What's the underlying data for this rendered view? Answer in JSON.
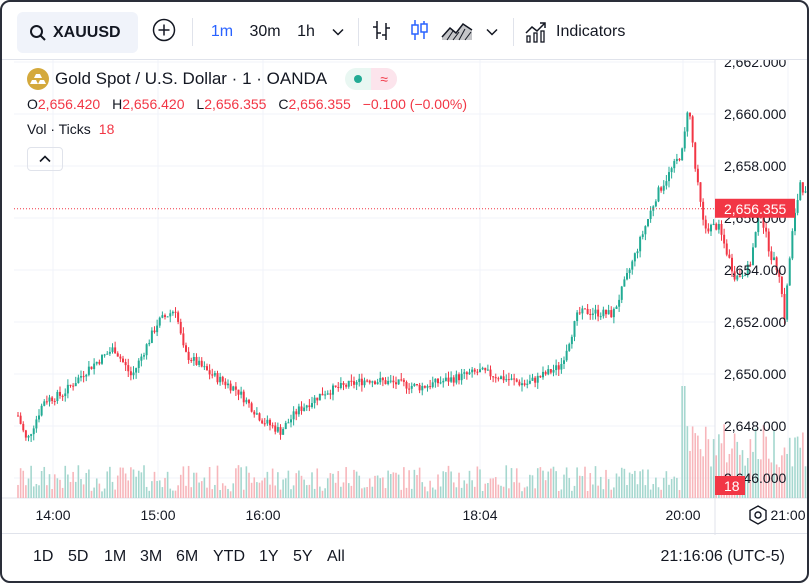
{
  "toolbar": {
    "symbol": "XAUUSD",
    "timeframes": [
      "1m",
      "30m",
      "1h"
    ],
    "active_timeframe": "1m",
    "indicators_label": "Indicators",
    "icons": [
      "search-icon",
      "add-compare-icon",
      "chevron-down-icon",
      "bar-style-icon",
      "candle-style-icon",
      "area-style-icon",
      "indicators-icon"
    ]
  },
  "legend": {
    "title": "Gold Spot / U.S. Dollar · 1 · OANDA",
    "open_label": "O",
    "open": "2,656.420",
    "high_label": "H",
    "high": "2,656.420",
    "low_label": "L",
    "low": "2,656.355",
    "close_label": "C",
    "close": "2,656.355",
    "change": "−0.100 (−0.00%)",
    "market_status_icon": "≈",
    "volume_label": "Vol · Ticks",
    "volume_value": "18"
  },
  "price_axis": {
    "ticks": [
      "2,662.000",
      "2,660.000",
      "2,658.000",
      "2,656.000",
      "2,654.000",
      "2,652.000",
      "2,650.000",
      "2,648.000",
      "2,646.000"
    ],
    "last_price_label": "2,656.355",
    "volume_label": "18"
  },
  "time_axis": {
    "ticks": [
      "14:00",
      "15:00",
      "16:00",
      "18:04",
      "20:00",
      "21:00"
    ]
  },
  "bottom_bar": {
    "ranges": [
      "1D",
      "5D",
      "1M",
      "3M",
      "6M",
      "YTD",
      "1Y",
      "5Y",
      "All"
    ],
    "clock": "21:16:06 (UTC-5)"
  },
  "colors": {
    "up": "#22ab94",
    "down": "#f23645",
    "accent": "#2962ff",
    "up_volume": "#a5d7cf",
    "down_volume": "#f7b6bb"
  },
  "chart_data": {
    "type": "candlestick",
    "symbol": "XAUUSD",
    "interval": "1",
    "ylim": [
      2645.2,
      2662.4
    ],
    "last_price": 2656.355,
    "x_ticks": [
      "14:00",
      "15:00",
      "16:00",
      "18:04",
      "20:00",
      "21:00"
    ],
    "price_path": [
      [
        "13:40",
        2648.4
      ],
      [
        "13:45",
        2647.4
      ],
      [
        "13:55",
        2649.0
      ],
      [
        "14:05",
        2649.2
      ],
      [
        "14:20",
        2650.2
      ],
      [
        "14:35",
        2651.0
      ],
      [
        "14:45",
        2649.9
      ],
      [
        "15:00",
        2652.0
      ],
      [
        "15:10",
        2652.5
      ],
      [
        "15:15",
        2650.8
      ],
      [
        "15:30",
        2650.0
      ],
      [
        "15:45",
        2649.4
      ],
      [
        "16:00",
        2648.2
      ],
      [
        "16:10",
        2647.8
      ],
      [
        "16:20",
        2648.6
      ],
      [
        "16:35",
        2649.3
      ],
      [
        "17:00",
        2649.8
      ],
      [
        "17:30",
        2649.5
      ],
      [
        "18:04",
        2650.1
      ],
      [
        "18:30",
        2649.6
      ],
      [
        "18:50",
        2650.3
      ],
      [
        "19:00",
        2652.3
      ],
      [
        "19:05",
        2652.4
      ],
      [
        "19:20",
        2652.3
      ],
      [
        "19:30",
        2654.1
      ],
      [
        "19:45",
        2656.9
      ],
      [
        "20:00",
        2658.6
      ],
      [
        "20:03",
        2660.5
      ],
      [
        "20:07",
        2657.9
      ],
      [
        "20:12",
        2655.6
      ],
      [
        "20:20",
        2655.7
      ],
      [
        "20:30",
        2653.7
      ],
      [
        "20:38",
        2654.1
      ],
      [
        "20:44",
        2656.3
      ],
      [
        "20:50",
        2654.6
      ],
      [
        "20:55",
        2653.9
      ],
      [
        "20:58",
        2652.2
      ],
      [
        "21:02",
        2655.2
      ],
      [
        "21:07",
        2657.4
      ],
      [
        "21:13",
        2656.4
      ]
    ],
    "volume_max_label": "18"
  }
}
